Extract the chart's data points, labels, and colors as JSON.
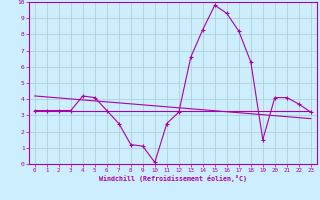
{
  "xlabel": "Windchill (Refroidissement éolien,°C)",
  "xlim": [
    -0.5,
    23.5
  ],
  "ylim": [
    0,
    10
  ],
  "xticks": [
    0,
    1,
    2,
    3,
    4,
    5,
    6,
    7,
    8,
    9,
    10,
    11,
    12,
    13,
    14,
    15,
    16,
    17,
    18,
    19,
    20,
    21,
    22,
    23
  ],
  "yticks": [
    0,
    1,
    2,
    3,
    4,
    5,
    6,
    7,
    8,
    9,
    10
  ],
  "bg_color": "#cceeff",
  "line_color": "#aa00aa",
  "grid_color": "#aacccc",
  "line1_x": [
    0,
    1,
    2,
    3,
    4,
    5,
    6,
    7,
    8,
    9,
    10,
    11,
    12,
    13,
    14,
    15,
    16,
    17,
    18,
    19,
    20,
    21,
    22,
    23
  ],
  "line1_y": [
    3.3,
    3.3,
    3.3,
    3.3,
    4.2,
    4.1,
    3.3,
    2.5,
    1.2,
    1.1,
    0.1,
    2.5,
    3.2,
    6.6,
    8.3,
    9.8,
    9.3,
    8.2,
    6.3,
    1.5,
    4.1,
    4.1,
    3.7,
    3.2
  ],
  "line2_x": [
    0,
    23
  ],
  "line2_y": [
    3.3,
    3.3
  ],
  "line3_x": [
    0,
    23
  ],
  "line3_y": [
    4.2,
    2.8
  ]
}
